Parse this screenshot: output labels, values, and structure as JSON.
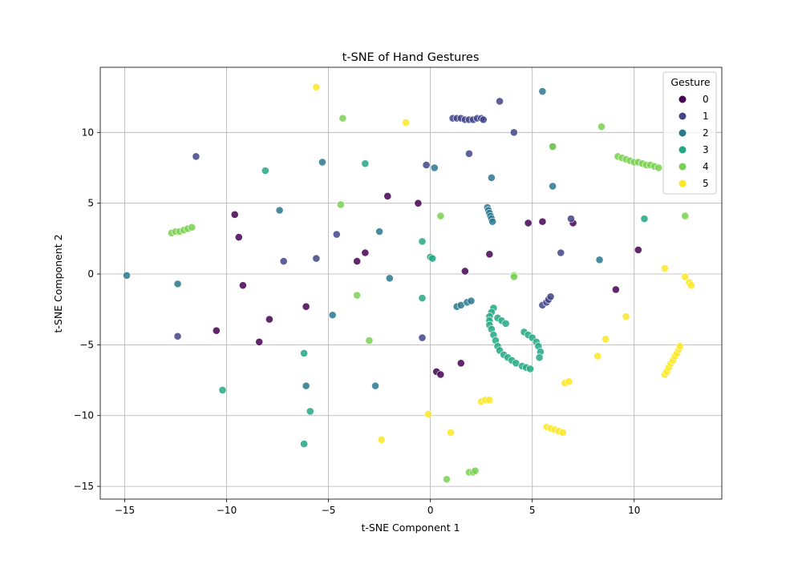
{
  "chart_data": {
    "type": "scatter",
    "title": "t-SNE of Hand Gestures",
    "xlabel": "t-SNE Component 1",
    "ylabel": "t-SNE Component 2",
    "xlim": [
      -16.2,
      14.3
    ],
    "ylim": [
      -15.9,
      14.6
    ],
    "xticks": [
      -15,
      -10,
      -5,
      0,
      5,
      10
    ],
    "yticks": [
      -15,
      -10,
      -5,
      0,
      5,
      10
    ],
    "x_tick_labels": [
      "−15",
      "−10",
      "−5",
      "0",
      "5",
      "10"
    ],
    "y_tick_labels": [
      "−15",
      "−10",
      "−5",
      "0",
      "5",
      "10"
    ],
    "grid": true,
    "legend": {
      "title": "Gesture",
      "placement": "top-right",
      "entries": [
        "0",
        "1",
        "2",
        "3",
        "4",
        "5"
      ]
    },
    "colors": {
      "0": "#440154",
      "1": "#414487",
      "2": "#2a788e",
      "3": "#22a884",
      "4": "#7ad151",
      "5": "#fde725"
    },
    "series": [
      {
        "name": "0",
        "points": [
          [
            -2.1,
            5.5
          ],
          [
            -0.6,
            5.0
          ],
          [
            -9.6,
            4.2
          ],
          [
            -9.4,
            2.6
          ],
          [
            -3.6,
            0.9
          ],
          [
            -3.2,
            1.5
          ],
          [
            -9.2,
            -0.8
          ],
          [
            -7.9,
            -3.2
          ],
          [
            -6.1,
            -2.3
          ],
          [
            -10.5,
            -4.0
          ],
          [
            -8.4,
            -4.8
          ],
          [
            1.7,
            0.2
          ],
          [
            2.9,
            1.4
          ],
          [
            4.8,
            3.6
          ],
          [
            5.5,
            3.7
          ],
          [
            7.0,
            3.6
          ],
          [
            10.2,
            1.7
          ],
          [
            9.1,
            -1.1
          ],
          [
            1.5,
            -6.3
          ],
          [
            0.3,
            -6.9
          ],
          [
            0.5,
            -7.1
          ]
        ]
      },
      {
        "name": "1",
        "points": [
          [
            1.1,
            11.0
          ],
          [
            1.3,
            11.0
          ],
          [
            1.5,
            11.0
          ],
          [
            1.7,
            10.9
          ],
          [
            1.9,
            10.9
          ],
          [
            2.1,
            10.9
          ],
          [
            2.3,
            11.0
          ],
          [
            2.5,
            11.0
          ],
          [
            2.6,
            10.9
          ],
          [
            3.4,
            12.2
          ],
          [
            4.1,
            10.0
          ],
          [
            1.9,
            8.5
          ],
          [
            -0.2,
            7.7
          ],
          [
            -11.5,
            8.3
          ],
          [
            -4.6,
            2.8
          ],
          [
            -5.6,
            1.1
          ],
          [
            -7.2,
            0.9
          ],
          [
            -12.4,
            -4.4
          ],
          [
            -0.4,
            -4.5
          ],
          [
            6.9,
            3.9
          ],
          [
            6.4,
            1.5
          ],
          [
            5.5,
            -2.2
          ],
          [
            5.7,
            -2.0
          ],
          [
            5.8,
            -1.8
          ],
          [
            5.9,
            -1.6
          ]
        ]
      },
      {
        "name": "2",
        "points": [
          [
            5.5,
            12.9
          ],
          [
            6.0,
            9.0
          ],
          [
            6.0,
            6.2
          ],
          [
            3.0,
            6.8
          ],
          [
            0.2,
            7.5
          ],
          [
            -5.3,
            7.9
          ],
          [
            -7.4,
            4.5
          ],
          [
            -2.5,
            3.0
          ],
          [
            2.8,
            4.7
          ],
          [
            2.85,
            4.5
          ],
          [
            2.9,
            4.3
          ],
          [
            2.95,
            4.1
          ],
          [
            3.0,
            3.9
          ],
          [
            3.05,
            3.7
          ],
          [
            -14.9,
            -0.1
          ],
          [
            -12.4,
            -0.7
          ],
          [
            -2.0,
            -0.3
          ],
          [
            1.3,
            -2.3
          ],
          [
            1.5,
            -2.2
          ],
          [
            1.8,
            -2.0
          ],
          [
            2.0,
            -1.9
          ],
          [
            -4.8,
            -2.9
          ],
          [
            8.3,
            1.0
          ],
          [
            -6.1,
            -7.9
          ],
          [
            -2.7,
            -7.9
          ]
        ]
      },
      {
        "name": "3",
        "points": [
          [
            -8.1,
            7.3
          ],
          [
            -3.2,
            7.8
          ],
          [
            10.5,
            3.9
          ],
          [
            0.0,
            1.2
          ],
          [
            0.1,
            1.1
          ],
          [
            -0.4,
            2.3
          ],
          [
            -0.4,
            -1.7
          ],
          [
            3.1,
            -2.4
          ],
          [
            3.0,
            -2.7
          ],
          [
            2.9,
            -3.0
          ],
          [
            2.9,
            -3.3
          ],
          [
            2.9,
            -3.6
          ],
          [
            3.0,
            -3.9
          ],
          [
            3.1,
            -4.3
          ],
          [
            3.2,
            -4.7
          ],
          [
            3.3,
            -5.1
          ],
          [
            3.4,
            -5.4
          ],
          [
            3.6,
            -5.7
          ],
          [
            3.8,
            -5.9
          ],
          [
            4.0,
            -6.1
          ],
          [
            4.2,
            -6.3
          ],
          [
            4.5,
            -6.5
          ],
          [
            4.7,
            -6.6
          ],
          [
            4.9,
            -6.7
          ],
          [
            3.3,
            -3.1
          ],
          [
            3.5,
            -3.3
          ],
          [
            3.7,
            -3.5
          ],
          [
            4.6,
            -4.1
          ],
          [
            4.8,
            -4.3
          ],
          [
            5.0,
            -4.5
          ],
          [
            5.2,
            -4.8
          ],
          [
            5.3,
            -5.1
          ],
          [
            5.4,
            -5.5
          ],
          [
            5.35,
            -5.9
          ],
          [
            -6.2,
            -5.6
          ],
          [
            -10.2,
            -8.2
          ],
          [
            -5.9,
            -9.7
          ],
          [
            -6.2,
            -12.0
          ]
        ]
      },
      {
        "name": "4",
        "points": [
          [
            -4.3,
            11.0
          ],
          [
            8.4,
            10.4
          ],
          [
            6.0,
            9.0
          ],
          [
            9.2,
            8.3
          ],
          [
            9.4,
            8.2
          ],
          [
            9.6,
            8.1
          ],
          [
            9.8,
            8.0
          ],
          [
            10.0,
            7.9
          ],
          [
            10.2,
            7.9
          ],
          [
            10.4,
            7.8
          ],
          [
            10.6,
            7.7
          ],
          [
            10.8,
            7.7
          ],
          [
            11.0,
            7.6
          ],
          [
            11.2,
            7.5
          ],
          [
            -4.4,
            4.9
          ],
          [
            0.5,
            4.1
          ],
          [
            12.5,
            4.1
          ],
          [
            -12.7,
            2.9
          ],
          [
            -12.5,
            3.0
          ],
          [
            -12.3,
            3.0
          ],
          [
            -12.1,
            3.1
          ],
          [
            -11.9,
            3.2
          ],
          [
            -11.7,
            3.3
          ],
          [
            4.1,
            -0.1
          ],
          [
            4.1,
            -0.2
          ],
          [
            -3.6,
            -1.5
          ],
          [
            -3.0,
            -4.7
          ],
          [
            0.8,
            -14.5
          ],
          [
            1.9,
            -14.0
          ],
          [
            2.1,
            -14.0
          ],
          [
            2.2,
            -13.9
          ]
        ]
      },
      {
        "name": "5",
        "points": [
          [
            -5.6,
            13.2
          ],
          [
            -1.2,
            10.7
          ],
          [
            11.5,
            0.4
          ],
          [
            12.5,
            -0.2
          ],
          [
            12.7,
            -0.6
          ],
          [
            12.8,
            -0.8
          ],
          [
            9.6,
            -3.0
          ],
          [
            8.6,
            -4.6
          ],
          [
            8.2,
            -5.8
          ],
          [
            11.5,
            -7.1
          ],
          [
            11.6,
            -6.9
          ],
          [
            11.7,
            -6.6
          ],
          [
            11.8,
            -6.3
          ],
          [
            11.9,
            -6.1
          ],
          [
            12.0,
            -5.8
          ],
          [
            12.1,
            -5.6
          ],
          [
            12.2,
            -5.3
          ],
          [
            12.25,
            -5.1
          ],
          [
            6.6,
            -7.7
          ],
          [
            6.8,
            -7.6
          ],
          [
            2.5,
            -9.0
          ],
          [
            2.7,
            -8.9
          ],
          [
            2.9,
            -8.9
          ],
          [
            -0.1,
            -9.9
          ],
          [
            1.0,
            -11.2
          ],
          [
            -2.4,
            -11.7
          ],
          [
            5.7,
            -10.8
          ],
          [
            5.9,
            -10.9
          ],
          [
            6.1,
            -11.0
          ],
          [
            6.3,
            -11.1
          ],
          [
            6.5,
            -11.2
          ]
        ]
      }
    ]
  }
}
